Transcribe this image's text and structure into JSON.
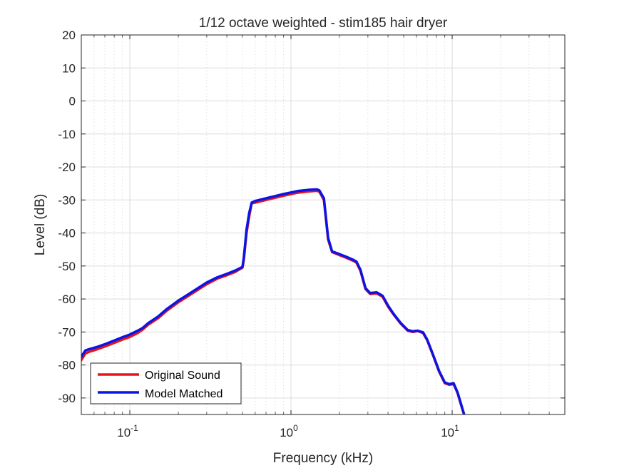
{
  "chart_data": {
    "type": "line",
    "title": "1/12 octave weighted - stim185 hair dryer",
    "xlabel": "Frequency (kHz)",
    "ylabel": "Level (dB)",
    "xscale": "log",
    "xlim": [
      0.05,
      50
    ],
    "ylim": [
      -95,
      20
    ],
    "grid": true,
    "minor_grid": true,
    "legend_location": "bottom-left",
    "x_ticks": [
      {
        "value": 0.1,
        "base": "10",
        "exp": "-1"
      },
      {
        "value": 1,
        "base": "10",
        "exp": "0"
      },
      {
        "value": 10,
        "base": "10",
        "exp": "1"
      }
    ],
    "y_ticks": [
      "20",
      "10",
      "0",
      "-10",
      "-20",
      "-30",
      "-40",
      "-50",
      "-60",
      "-70",
      "-80",
      "-90"
    ],
    "series": [
      {
        "name": "Original Sound",
        "color": "#e8141c",
        "x": [
          0.05,
          0.053,
          0.056,
          0.063,
          0.071,
          0.08,
          0.09,
          0.1,
          0.112,
          0.12,
          0.13,
          0.15,
          0.17,
          0.2,
          0.25,
          0.3,
          0.35,
          0.4,
          0.45,
          0.5,
          0.51,
          0.53,
          0.55,
          0.57,
          0.6,
          0.7,
          0.9,
          1.1,
          1.3,
          1.45,
          1.5,
          1.6,
          1.7,
          1.8,
          2.0,
          2.2,
          2.45,
          2.55,
          2.7,
          2.9,
          3.1,
          3.4,
          3.7,
          4.0,
          4.3,
          4.8,
          5.3,
          5.7,
          6.1,
          6.6,
          7.0,
          7.6,
          8.3,
          9.0,
          9.6,
          10.2,
          10.8,
          11.5,
          12.2
        ],
        "y": [
          -78.5,
          -76.5,
          -76.0,
          -75.2,
          -74.3,
          -73.3,
          -72.3,
          -71.5,
          -70.3,
          -69.3,
          -67.8,
          -65.8,
          -63.5,
          -61.0,
          -58.0,
          -55.5,
          -53.8,
          -52.8,
          -51.8,
          -50.5,
          -48.0,
          -40.0,
          -35.0,
          -31.0,
          -30.8,
          -30.0,
          -28.7,
          -27.8,
          -27.4,
          -27.2,
          -27.5,
          -30.0,
          -42.0,
          -45.8,
          -46.7,
          -47.5,
          -48.5,
          -49.0,
          -51.5,
          -57.0,
          -58.5,
          -58.3,
          -59.3,
          -62.3,
          -64.5,
          -67.5,
          -69.6,
          -70.0,
          -69.7,
          -70.3,
          -72.5,
          -77.0,
          -82.0,
          -85.5,
          -86.0,
          -85.7,
          -88.5,
          -93.0,
          -97.0
        ]
      },
      {
        "name": "Model Matched",
        "color": "#0a14e6",
        "x": [
          0.05,
          0.053,
          0.056,
          0.063,
          0.071,
          0.08,
          0.09,
          0.1,
          0.112,
          0.12,
          0.13,
          0.15,
          0.17,
          0.2,
          0.25,
          0.3,
          0.35,
          0.4,
          0.45,
          0.5,
          0.51,
          0.53,
          0.55,
          0.57,
          0.6,
          0.7,
          0.9,
          1.1,
          1.3,
          1.45,
          1.5,
          1.6,
          1.7,
          1.8,
          2.0,
          2.2,
          2.45,
          2.55,
          2.7,
          2.9,
          3.1,
          3.4,
          3.7,
          4.0,
          4.3,
          4.8,
          5.3,
          5.7,
          6.1,
          6.6,
          7.0,
          7.6,
          8.3,
          9.0,
          9.6,
          10.2,
          10.8,
          11.5,
          12.2
        ],
        "y": [
          -77.5,
          -75.6,
          -75.2,
          -74.5,
          -73.6,
          -72.6,
          -71.6,
          -70.8,
          -69.6,
          -68.8,
          -67.3,
          -65.3,
          -63.0,
          -60.5,
          -57.5,
          -55.0,
          -53.4,
          -52.4,
          -51.4,
          -50.3,
          -47.5,
          -39.0,
          -34.0,
          -30.8,
          -30.3,
          -29.5,
          -28.2,
          -27.3,
          -26.9,
          -26.8,
          -27.1,
          -29.5,
          -41.5,
          -45.6,
          -46.4,
          -47.2,
          -48.2,
          -48.7,
          -51.2,
          -56.7,
          -58.2,
          -58.0,
          -59.0,
          -62.0,
          -64.3,
          -67.3,
          -69.4,
          -69.8,
          -69.6,
          -70.1,
          -72.3,
          -76.8,
          -81.8,
          -85.3,
          -85.8,
          -85.5,
          -88.3,
          -92.8,
          -97.0
        ]
      }
    ]
  }
}
